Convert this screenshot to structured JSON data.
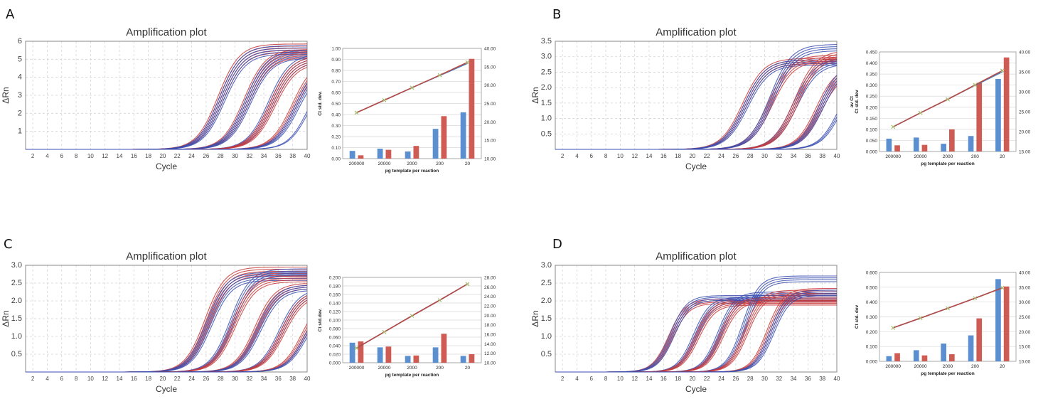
{
  "figure": {
    "panels": [
      {
        "letter": "A",
        "amp": {
          "title": "Amplification plot",
          "ylabel": "ΔRn",
          "xlabel": "Cycle",
          "xticks": [
            2,
            4,
            6,
            8,
            10,
            12,
            14,
            16,
            18,
            20,
            22,
            24,
            26,
            28,
            30,
            32,
            34,
            36,
            38,
            40
          ],
          "yticks": [
            1,
            2,
            3,
            4,
            5,
            6
          ],
          "ylim": [
            0,
            6
          ],
          "xlim": [
            1,
            40
          ],
          "groups": [
            {
              "mid": 28.0,
              "k": 0.42,
              "top": 5.85,
              "color": "#c83a3a",
              "n": 5
            },
            {
              "mid": 28.2,
              "k": 0.42,
              "top": 5.75,
              "color": "#3b4fb0",
              "n": 5
            },
            {
              "mid": 31.6,
              "k": 0.42,
              "top": 5.55,
              "color": "#c83a3a",
              "n": 5
            },
            {
              "mid": 31.8,
              "k": 0.42,
              "top": 5.5,
              "color": "#3b4fb0",
              "n": 5
            },
            {
              "mid": 35.0,
              "k": 0.42,
              "top": 5.3,
              "color": "#3b4fb0",
              "n": 5
            },
            {
              "mid": 35.2,
              "k": 0.42,
              "top": 5.2,
              "color": "#c83a3a",
              "n": 5
            },
            {
              "mid": 38.2,
              "k": 0.42,
              "top": 5.0,
              "color": "#c83a3a",
              "n": 4
            },
            {
              "mid": 38.6,
              "k": 0.42,
              "top": 4.9,
              "color": "#3b4fb0",
              "n": 4
            },
            {
              "mid": 40.2,
              "k": 0.45,
              "top": 4.4,
              "color": "#3b4fb0",
              "n": 2
            }
          ]
        },
        "bar": {
          "categories": [
            "200000",
            "20000",
            "2000",
            "200",
            "20"
          ],
          "xlabel": "pg template per reaction",
          "ylabel": "Ct std. dev.",
          "yticks": [
            "0.00",
            "0.10",
            "0.20",
            "0.30",
            "0.40",
            "0.50",
            "0.60",
            "0.70",
            "0.80",
            "0.90",
            "1.00"
          ],
          "ylim": [
            0,
            1.0
          ],
          "y2ticks": [
            "10.00",
            "15.00",
            "20.00",
            "25.00",
            "30.00",
            "35.00",
            "40.00"
          ],
          "y2lim": [
            10,
            40
          ],
          "blue": [
            0.07,
            0.09,
            0.065,
            0.27,
            0.42
          ],
          "red": [
            0.03,
            0.08,
            0.115,
            0.385,
            0.905
          ],
          "line_blue": [
            22.5,
            25.9,
            29.3,
            32.6,
            35.9
          ],
          "line_red": [
            22.5,
            25.9,
            29.3,
            32.7,
            36.2
          ]
        }
      },
      {
        "letter": "B",
        "amp": {
          "title": "Amplification plot",
          "ylabel": "ΔRn",
          "xlabel": "Cycle",
          "xticks": [
            2,
            4,
            6,
            8,
            10,
            12,
            14,
            16,
            18,
            20,
            22,
            24,
            26,
            28,
            30,
            32,
            34,
            36,
            38,
            40
          ],
          "yticks": [
            0.5,
            1.0,
            1.5,
            2.0,
            2.5,
            3.0,
            3.5
          ],
          "ylim": [
            0,
            3.5
          ],
          "xlim": [
            1,
            40
          ],
          "groups": [
            {
              "mid": 27.2,
              "k": 0.42,
              "top": 2.95,
              "color": "#c83a3a",
              "n": 4
            },
            {
              "mid": 27.4,
              "k": 0.42,
              "top": 2.9,
              "color": "#3b4fb0",
              "n": 4
            },
            {
              "mid": 30.8,
              "k": 0.42,
              "top": 3.05,
              "color": "#c83a3a",
              "n": 4
            },
            {
              "mid": 31.0,
              "k": 0.42,
              "top": 3.4,
              "color": "#3b4fb0",
              "n": 4
            },
            {
              "mid": 34.2,
              "k": 0.42,
              "top": 2.95,
              "color": "#3b4fb0",
              "n": 4
            },
            {
              "mid": 34.4,
              "k": 0.42,
              "top": 3.2,
              "color": "#c83a3a",
              "n": 4
            },
            {
              "mid": 37.5,
              "k": 0.45,
              "top": 2.7,
              "color": "#c83a3a",
              "n": 5
            },
            {
              "mid": 37.8,
              "k": 0.45,
              "top": 2.8,
              "color": "#3b4fb0",
              "n": 4
            },
            {
              "mid": 40.5,
              "k": 0.45,
              "top": 2.6,
              "color": "#3b4fb0",
              "n": 3
            }
          ]
        },
        "bar": {
          "categories": [
            "200000",
            "20000",
            "2000",
            "200",
            "20"
          ],
          "xlabel": "pg template per reaction",
          "ylabel": "Ct std. dev",
          "ylabel2": "av Ct",
          "yticks": [
            "0.000",
            "0.050",
            "0.100",
            "0.150",
            "0.200",
            "0.250",
            "0.300",
            "0.350",
            "0.400",
            "0.450"
          ],
          "ylim": [
            0,
            0.45
          ],
          "y2ticks": [
            "15.00",
            "20.00",
            "25.00",
            "30.00",
            "35.00",
            "40.00"
          ],
          "y2lim": [
            15,
            40
          ],
          "blue": [
            0.058,
            0.063,
            0.035,
            0.07,
            0.328
          ],
          "red": [
            0.028,
            0.03,
            0.1,
            0.31,
            0.425
          ],
          "line_blue": [
            21.2,
            24.7,
            28.1,
            31.6,
            35.0
          ],
          "line_red": [
            21.2,
            24.7,
            28.1,
            31.7,
            35.3
          ]
        }
      },
      {
        "letter": "C",
        "amp": {
          "title": "Amplification plot",
          "ylabel": "ΔRn",
          "xlabel": "Cycle",
          "xticks": [
            2,
            4,
            6,
            8,
            10,
            12,
            14,
            16,
            18,
            20,
            22,
            24,
            26,
            28,
            30,
            32,
            34,
            36,
            38,
            40
          ],
          "yticks": [
            0.5,
            1.0,
            1.5,
            2.0,
            2.5,
            3.0
          ],
          "ylim": [
            0,
            3.0
          ],
          "xlim": [
            1,
            40
          ],
          "groups": [
            {
              "mid": 26.2,
              "k": 0.45,
              "top": 2.95,
              "color": "#c83a3a",
              "n": 5
            },
            {
              "mid": 26.4,
              "k": 0.45,
              "top": 2.8,
              "color": "#3b4fb0",
              "n": 5
            },
            {
              "mid": 29.6,
              "k": 0.45,
              "top": 2.9,
              "color": "#3b4fb0",
              "n": 4
            },
            {
              "mid": 29.8,
              "k": 0.45,
              "top": 2.7,
              "color": "#c83a3a",
              "n": 4
            },
            {
              "mid": 33.0,
              "k": 0.45,
              "top": 2.5,
              "color": "#c83a3a",
              "n": 4
            },
            {
              "mid": 33.3,
              "k": 0.45,
              "top": 2.45,
              "color": "#3b4fb0",
              "n": 4
            },
            {
              "mid": 36.4,
              "k": 0.45,
              "top": 2.35,
              "color": "#3b4fb0",
              "n": 4
            },
            {
              "mid": 36.6,
              "k": 0.45,
              "top": 2.3,
              "color": "#c83a3a",
              "n": 4
            },
            {
              "mid": 39.6,
              "k": 0.45,
              "top": 2.2,
              "color": "#c83a3a",
              "n": 4
            },
            {
              "mid": 39.9,
              "k": 0.45,
              "top": 2.1,
              "color": "#3b4fb0",
              "n": 3
            }
          ]
        },
        "bar": {
          "categories": [
            "200000",
            "20000",
            "2000",
            "200",
            "20"
          ],
          "xlabel": "pg template per reaction",
          "ylabel": "Ct std.dev.",
          "yticks": [
            "0.000",
            "0.020",
            "0.040",
            "0.060",
            "0.080",
            "0.100",
            "0.120",
            "0.140",
            "0.160",
            "0.180",
            "0.200"
          ],
          "ylim": [
            0,
            0.2
          ],
          "y2ticks": [
            "10.00",
            "12.00",
            "14.00",
            "16.00",
            "18.00",
            "20.00",
            "22.00",
            "24.00",
            "26.00",
            "28.00"
          ],
          "y2lim": [
            10,
            28
          ],
          "blue": [
            0.047,
            0.036,
            0.016,
            0.036,
            0.016
          ],
          "red": [
            0.05,
            0.038,
            0.017,
            0.068,
            0.02
          ],
          "line_blue": [
            13.1,
            16.5,
            19.9,
            23.2,
            26.6
          ],
          "line_red": [
            13.1,
            16.5,
            19.9,
            23.2,
            26.6
          ]
        }
      },
      {
        "letter": "D",
        "amp": {
          "title": "Amplification plot",
          "ylabel": "ΔRn",
          "xlabel": "Cycle",
          "xticks": [
            2,
            4,
            6,
            8,
            10,
            12,
            14,
            16,
            18,
            20,
            22,
            24,
            26,
            28,
            30,
            32,
            34,
            36,
            38,
            40
          ],
          "yticks": [
            0.5,
            1.0,
            1.5,
            2.0,
            2.5,
            3.0
          ],
          "ylim": [
            0,
            3.0
          ],
          "xlim": [
            1,
            40
          ],
          "groups": [
            {
              "mid": 17.0,
              "k": 0.55,
              "top": 2.05,
              "color": "#c83a3a",
              "n": 4
            },
            {
              "mid": 17.2,
              "k": 0.55,
              "top": 2.15,
              "color": "#3b4fb0",
              "n": 4
            },
            {
              "mid": 20.4,
              "k": 0.55,
              "top": 2.1,
              "color": "#3b4fb0",
              "n": 4
            },
            {
              "mid": 20.6,
              "k": 0.55,
              "top": 2.0,
              "color": "#c83a3a",
              "n": 4
            },
            {
              "mid": 23.8,
              "k": 0.55,
              "top": 2.25,
              "color": "#3b4fb0",
              "n": 4
            },
            {
              "mid": 24.0,
              "k": 0.55,
              "top": 2.1,
              "color": "#c83a3a",
              "n": 4
            },
            {
              "mid": 27.2,
              "k": 0.55,
              "top": 2.7,
              "color": "#3b4fb0",
              "n": 4
            },
            {
              "mid": 27.4,
              "k": 0.55,
              "top": 2.3,
              "color": "#c83a3a",
              "n": 4
            },
            {
              "mid": 30.6,
              "k": 0.55,
              "top": 2.35,
              "color": "#c83a3a",
              "n": 4
            },
            {
              "mid": 31.0,
              "k": 0.55,
              "top": 2.3,
              "color": "#3b4fb0",
              "n": 4
            }
          ]
        },
        "bar": {
          "categories": [
            "200000",
            "20000",
            "2000",
            "200",
            "20"
          ],
          "xlabel": "pg template per reaction",
          "ylabel": "Ct std. dev",
          "yticks": [
            "0.000",
            "0.100",
            "0.200",
            "0.300",
            "0.400",
            "0.500",
            "0.600"
          ],
          "ylim": [
            0,
            0.6
          ],
          "y2ticks": [
            "10.00",
            "15.00",
            "20.00",
            "25.00",
            "30.00",
            "35.00",
            "40.00"
          ],
          "y2lim": [
            10,
            40
          ],
          "blue": [
            0.035,
            0.075,
            0.12,
            0.175,
            0.555
          ],
          "red": [
            0.055,
            0.04,
            0.048,
            0.29,
            0.505
          ],
          "line_blue": [
            21.3,
            24.6,
            27.9,
            31.3,
            34.8
          ],
          "line_red": [
            21.3,
            24.6,
            27.9,
            31.3,
            34.8
          ]
        }
      }
    ]
  },
  "chart_data": [
    {
      "type": "line",
      "title": "Amplification plot",
      "xlabel": "Cycle",
      "ylabel": "ΔRn",
      "xlim": [
        1,
        40
      ],
      "ylim": [
        0,
        6
      ],
      "x_ticks": [
        2,
        4,
        6,
        8,
        10,
        12,
        14,
        16,
        18,
        20,
        22,
        24,
        26,
        28,
        30,
        32,
        34,
        36,
        38,
        40
      ],
      "y_ticks": [
        1,
        2,
        3,
        4,
        5,
        6
      ]
    },
    {
      "type": "bar",
      "xlabel": "pg template per reaction",
      "ylabel": "Ct std. dev.",
      "categories": [
        "200000",
        "20000",
        "2000",
        "200",
        "20"
      ],
      "series": [
        {
          "values": [
            0.07,
            0.09,
            0.065,
            0.27,
            0.42
          ]
        },
        {
          "values": [
            0.03,
            0.08,
            0.115,
            0.385,
            0.905
          ]
        }
      ],
      "secondary_lines": [
        {
          "values": [
            22.5,
            25.9,
            29.3,
            32.6,
            35.9
          ]
        },
        {
          "values": [
            22.5,
            25.9,
            29.3,
            32.7,
            36.2
          ]
        }
      ],
      "ylim": [
        0,
        1.0
      ],
      "y2lim": [
        10,
        40
      ]
    },
    {
      "type": "line",
      "title": "Amplification plot",
      "xlabel": "Cycle",
      "ylabel": "ΔRn",
      "xlim": [
        1,
        40
      ],
      "ylim": [
        0,
        3.5
      ]
    },
    {
      "type": "bar",
      "xlabel": "pg template per reaction",
      "ylabel": "Ct std. dev",
      "ylabel2": "av Ct",
      "categories": [
        "200000",
        "20000",
        "2000",
        "200",
        "20"
      ],
      "series": [
        {
          "values": [
            0.058,
            0.063,
            0.035,
            0.07,
            0.328
          ]
        },
        {
          "values": [
            0.028,
            0.03,
            0.1,
            0.31,
            0.425
          ]
        }
      ],
      "secondary_lines": [
        {
          "values": [
            21.2,
            24.7,
            28.1,
            31.6,
            35.0
          ]
        },
        {
          "values": [
            21.2,
            24.7,
            28.1,
            31.7,
            35.3
          ]
        }
      ],
      "ylim": [
        0,
        0.45
      ],
      "y2lim": [
        15,
        40
      ]
    },
    {
      "type": "line",
      "title": "Amplification plot",
      "xlabel": "Cycle",
      "ylabel": "ΔRn",
      "xlim": [
        1,
        40
      ],
      "ylim": [
        0,
        3.0
      ]
    },
    {
      "type": "bar",
      "xlabel": "pg template per reaction",
      "ylabel": "Ct std.dev.",
      "categories": [
        "200000",
        "20000",
        "2000",
        "200",
        "20"
      ],
      "series": [
        {
          "values": [
            0.047,
            0.036,
            0.016,
            0.036,
            0.016
          ]
        },
        {
          "values": [
            0.05,
            0.038,
            0.017,
            0.068,
            0.02
          ]
        }
      ],
      "secondary_lines": [
        {
          "values": [
            13.1,
            16.5,
            19.9,
            23.2,
            26.6
          ]
        }
      ],
      "ylim": [
        0,
        0.2
      ],
      "y2lim": [
        10,
        28
      ]
    },
    {
      "type": "line",
      "title": "Amplification plot",
      "xlabel": "Cycle",
      "ylabel": "ΔRn",
      "xlim": [
        1,
        40
      ],
      "ylim": [
        0,
        3.0
      ]
    },
    {
      "type": "bar",
      "xlabel": "pg template per reaction",
      "ylabel": "Ct std. dev",
      "categories": [
        "200000",
        "20000",
        "2000",
        "200",
        "20"
      ],
      "series": [
        {
          "values": [
            0.035,
            0.075,
            0.12,
            0.175,
            0.555
          ]
        },
        {
          "values": [
            0.055,
            0.04,
            0.048,
            0.29,
            0.505
          ]
        }
      ],
      "secondary_lines": [
        {
          "values": [
            21.3,
            24.6,
            27.9,
            31.3,
            34.8
          ]
        }
      ],
      "ylim": [
        0,
        0.6
      ],
      "y2lim": [
        10,
        40
      ]
    }
  ],
  "colors": {
    "bar_blue": "#5b8fcf",
    "bar_red": "#cf5b55",
    "line_blue": "#4a7fbd",
    "line_red": "#b84a45",
    "marker": "#a8b870",
    "grid": "#d4d4d4",
    "axis": "#888888"
  }
}
